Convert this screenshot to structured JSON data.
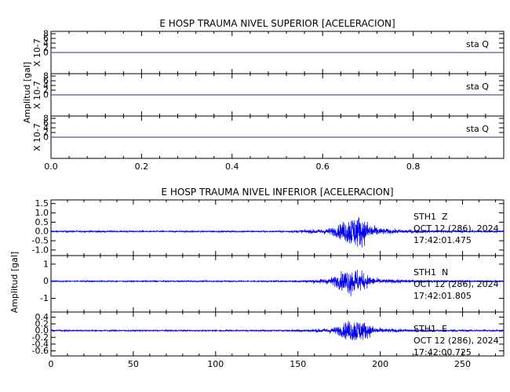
{
  "chart_data": [
    {
      "type": "line",
      "title": "E HOSP TRAUMA NIVEL SUPERIOR [ACELERACION]",
      "ylabel": "Amplitud [gal]",
      "xlim": [
        0.0,
        1.0
      ],
      "x_ticks": [
        "0.0",
        "0.2",
        "0.4",
        "0.6",
        "0.8"
      ],
      "x_tick_values": [
        0.0,
        0.2,
        0.4,
        0.6,
        0.8
      ],
      "series_color": "#0000cc",
      "baseline_color": "#555599",
      "panels": [
        {
          "name": "",
          "label": "sta    Q",
          "scale_label": "X 10-7",
          "ylim": [
            -9,
            9
          ],
          "y_ticks": [
            "8",
            "6",
            "4",
            "2",
            "0"
          ],
          "y_tick_values": [
            8,
            6,
            4,
            2,
            0
          ],
          "values": "flat zero"
        },
        {
          "name": "",
          "label": "sta    Q",
          "scale_label": "X 10-7",
          "ylim": [
            -9,
            9
          ],
          "y_ticks": [
            "8",
            "6",
            "4",
            "2",
            "0"
          ],
          "y_tick_values": [
            8,
            6,
            4,
            2,
            0
          ],
          "values": "flat zero"
        },
        {
          "name": "",
          "label": "sta    Q",
          "scale_label": "X 10-7",
          "ylim": [
            -9,
            9
          ],
          "y_ticks": [
            "8",
            "6",
            "4",
            "2",
            "0"
          ],
          "y_tick_values": [
            8,
            6,
            4,
            2,
            0
          ],
          "values": "flat zero"
        }
      ]
    },
    {
      "type": "line",
      "title": "E HOSP TRAUMA NIVEL INFERIOR [ACELERACION]",
      "ylabel": "Amplitud [gal]",
      "xlim": [
        0,
        275
      ],
      "x_ticks": [
        "0",
        "50",
        "100",
        "150",
        "200",
        "250"
      ],
      "x_tick_values": [
        0,
        50,
        100,
        150,
        200,
        250
      ],
      "series_color": "#0000ee",
      "panels": [
        {
          "name": "STH1",
          "component": "Z",
          "date": "OCT 12 (286), 2024",
          "time": "17:42:01.475",
          "ylim": [
            -1.3,
            1.7
          ],
          "y_ticks": [
            "1.5",
            "1.0",
            "0.5",
            "0.0",
            "-0.5",
            "-1.0"
          ],
          "y_tick_values": [
            1.5,
            1.0,
            0.5,
            0.0,
            -0.5,
            -1.0
          ],
          "peak_amplitude": 1.6,
          "onset_s": 143,
          "peak_s": 185,
          "noise_amplitude": 0.04
        },
        {
          "name": "STH1",
          "component": "N",
          "date": "OCT 12 (286), 2024",
          "time": "17:42:01.805",
          "ylim": [
            -1.8,
            1.5
          ],
          "y_ticks": [
            "1",
            "0",
            "-1"
          ],
          "y_tick_values": [
            1,
            0,
            -1
          ],
          "peak_amplitude": 1.4,
          "onset_s": 145,
          "peak_s": 183,
          "noise_amplitude": 0.04
        },
        {
          "name": "STH1",
          "component": "E",
          "date": "OCT 12 (286), 2024",
          "time": "17:42:00.725",
          "ylim": [
            -0.75,
            0.55
          ],
          "y_ticks": [
            "0.4",
            "0.2",
            "0.0",
            "-0.2",
            "-0.4",
            "-0.6"
          ],
          "y_tick_values": [
            0.4,
            0.2,
            0.0,
            -0.2,
            -0.4,
            -0.6
          ],
          "peak_amplitude": 0.62,
          "onset_s": 140,
          "peak_s": 185,
          "noise_amplitude": 0.02
        }
      ]
    }
  ]
}
